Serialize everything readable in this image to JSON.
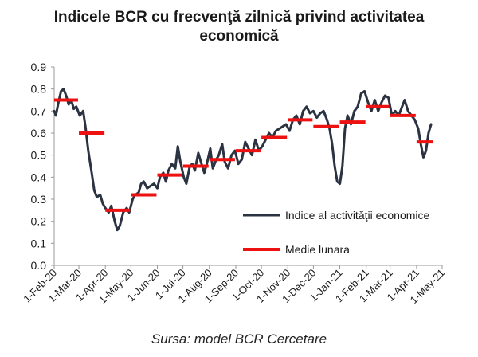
{
  "chart_data": {
    "type": "line",
    "title_line1": "Indicele BCR cu frecvenţă zilnică privind activitatea",
    "title_line2": "economică",
    "xlabel": "",
    "ylabel": "",
    "ylim": [
      0,
      0.9
    ],
    "yticks": [
      "0.0",
      "0.1",
      "0.2",
      "0.3",
      "0.4",
      "0.5",
      "0.6",
      "0.7",
      "0.8",
      "0.9"
    ],
    "xticks": [
      "1-Feb-20",
      "1-Mar-20",
      "1-Apr-20",
      "1-May-20",
      "1-Jun-20",
      "1-Jul-20",
      "1-Aug-20",
      "1-Sep-20",
      "1-Oct-20",
      "1-Nov-20",
      "1-Dec-20",
      "1-Jan-21",
      "1-Feb-21",
      "1-Mar-21",
      "1-Apr-21",
      "1-May-21"
    ],
    "grid": false,
    "legend_position": "right",
    "series": [
      {
        "name": "Indice al activităţii economice",
        "color": "#2b3342",
        "points": [
          [
            "2020-02-01",
            0.7
          ],
          [
            "2020-02-03",
            0.68
          ],
          [
            "2020-02-06",
            0.74
          ],
          [
            "2020-02-09",
            0.79
          ],
          [
            "2020-02-12",
            0.8
          ],
          [
            "2020-02-15",
            0.77
          ],
          [
            "2020-02-18",
            0.73
          ],
          [
            "2020-02-21",
            0.75
          ],
          [
            "2020-02-24",
            0.71
          ],
          [
            "2020-02-27",
            0.72
          ],
          [
            "2020-03-02",
            0.68
          ],
          [
            "2020-03-06",
            0.7
          ],
          [
            "2020-03-09",
            0.62
          ],
          [
            "2020-03-12",
            0.52
          ],
          [
            "2020-03-16",
            0.42
          ],
          [
            "2020-03-19",
            0.34
          ],
          [
            "2020-03-22",
            0.31
          ],
          [
            "2020-03-26",
            0.32
          ],
          [
            "2020-03-29",
            0.28
          ],
          [
            "2020-04-01",
            0.26
          ],
          [
            "2020-04-05",
            0.24
          ],
          [
            "2020-04-08",
            0.27
          ],
          [
            "2020-04-12",
            0.2
          ],
          [
            "2020-04-15",
            0.16
          ],
          [
            "2020-04-18",
            0.18
          ],
          [
            "2020-04-22",
            0.24
          ],
          [
            "2020-04-26",
            0.26
          ],
          [
            "2020-04-29",
            0.24
          ],
          [
            "2020-05-03",
            0.3
          ],
          [
            "2020-05-06",
            0.32
          ],
          [
            "2020-05-10",
            0.33
          ],
          [
            "2020-05-13",
            0.37
          ],
          [
            "2020-05-16",
            0.38
          ],
          [
            "2020-05-20",
            0.35
          ],
          [
            "2020-05-24",
            0.36
          ],
          [
            "2020-05-28",
            0.37
          ],
          [
            "2020-06-01",
            0.35
          ],
          [
            "2020-06-04",
            0.4
          ],
          [
            "2020-06-08",
            0.42
          ],
          [
            "2020-06-11",
            0.38
          ],
          [
            "2020-06-14",
            0.43
          ],
          [
            "2020-06-18",
            0.46
          ],
          [
            "2020-06-22",
            0.44
          ],
          [
            "2020-06-25",
            0.54
          ],
          [
            "2020-06-28",
            0.47
          ],
          [
            "2020-07-02",
            0.4
          ],
          [
            "2020-07-05",
            0.37
          ],
          [
            "2020-07-09",
            0.45
          ],
          [
            "2020-07-12",
            0.46
          ],
          [
            "2020-07-15",
            0.43
          ],
          [
            "2020-07-19",
            0.51
          ],
          [
            "2020-07-22",
            0.47
          ],
          [
            "2020-07-26",
            0.42
          ],
          [
            "2020-07-29",
            0.46
          ],
          [
            "2020-08-02",
            0.53
          ],
          [
            "2020-08-05",
            0.44
          ],
          [
            "2020-08-09",
            0.48
          ],
          [
            "2020-08-12",
            0.5
          ],
          [
            "2020-08-16",
            0.55
          ],
          [
            "2020-08-19",
            0.47
          ],
          [
            "2020-08-23",
            0.44
          ],
          [
            "2020-08-27",
            0.5
          ],
          [
            "2020-08-31",
            0.52
          ],
          [
            "2020-09-04",
            0.46
          ],
          [
            "2020-09-08",
            0.48
          ],
          [
            "2020-09-12",
            0.56
          ],
          [
            "2020-09-16",
            0.53
          ],
          [
            "2020-09-20",
            0.5
          ],
          [
            "2020-09-24",
            0.57
          ],
          [
            "2020-09-28",
            0.52
          ],
          [
            "2020-10-02",
            0.54
          ],
          [
            "2020-10-06",
            0.57
          ],
          [
            "2020-10-10",
            0.6
          ],
          [
            "2020-10-14",
            0.58
          ],
          [
            "2020-10-18",
            0.61
          ],
          [
            "2020-10-22",
            0.62
          ],
          [
            "2020-10-26",
            0.63
          ],
          [
            "2020-10-30",
            0.64
          ],
          [
            "2020-11-03",
            0.61
          ],
          [
            "2020-11-07",
            0.66
          ],
          [
            "2020-11-11",
            0.68
          ],
          [
            "2020-11-15",
            0.64
          ],
          [
            "2020-11-19",
            0.7
          ],
          [
            "2020-11-23",
            0.72
          ],
          [
            "2020-11-27",
            0.69
          ],
          [
            "2020-12-01",
            0.7
          ],
          [
            "2020-12-05",
            0.67
          ],
          [
            "2020-12-09",
            0.69
          ],
          [
            "2020-12-13",
            0.7
          ],
          [
            "2020-12-17",
            0.66
          ],
          [
            "2020-12-20",
            0.62
          ],
          [
            "2020-12-23",
            0.55
          ],
          [
            "2020-12-26",
            0.45
          ],
          [
            "2020-12-29",
            0.38
          ],
          [
            "2021-01-01",
            0.37
          ],
          [
            "2021-01-04",
            0.45
          ],
          [
            "2021-01-07",
            0.62
          ],
          [
            "2021-01-10",
            0.68
          ],
          [
            "2021-01-14",
            0.64
          ],
          [
            "2021-01-18",
            0.7
          ],
          [
            "2021-01-22",
            0.72
          ],
          [
            "2021-01-26",
            0.78
          ],
          [
            "2021-01-30",
            0.79
          ],
          [
            "2021-02-03",
            0.74
          ],
          [
            "2021-02-07",
            0.7
          ],
          [
            "2021-02-11",
            0.75
          ],
          [
            "2021-02-15",
            0.7
          ],
          [
            "2021-02-19",
            0.74
          ],
          [
            "2021-02-23",
            0.77
          ],
          [
            "2021-02-27",
            0.76
          ],
          [
            "2021-03-03",
            0.68
          ],
          [
            "2021-03-07",
            0.7
          ],
          [
            "2021-03-11",
            0.68
          ],
          [
            "2021-03-15",
            0.72
          ],
          [
            "2021-03-18",
            0.75
          ],
          [
            "2021-03-22",
            0.7
          ],
          [
            "2021-03-26",
            0.68
          ],
          [
            "2021-03-30",
            0.66
          ],
          [
            "2021-04-03",
            0.62
          ],
          [
            "2021-04-06",
            0.55
          ],
          [
            "2021-04-09",
            0.49
          ],
          [
            "2021-04-12",
            0.52
          ],
          [
            "2021-04-15",
            0.6
          ],
          [
            "2021-04-18",
            0.64
          ]
        ]
      },
      {
        "name": "Medie lunara",
        "color": "#ee1111",
        "segments": [
          [
            "2020-02-01",
            "2020-02-29",
            0.75
          ],
          [
            "2020-03-01",
            "2020-03-31",
            0.6
          ],
          [
            "2020-04-01",
            "2020-04-30",
            0.25
          ],
          [
            "2020-05-01",
            "2020-05-31",
            0.32
          ],
          [
            "2020-06-01",
            "2020-06-30",
            0.41
          ],
          [
            "2020-07-01",
            "2020-07-31",
            0.45
          ],
          [
            "2020-08-01",
            "2020-08-31",
            0.48
          ],
          [
            "2020-09-01",
            "2020-09-30",
            0.52
          ],
          [
            "2020-10-01",
            "2020-10-31",
            0.58
          ],
          [
            "2020-11-01",
            "2020-11-30",
            0.66
          ],
          [
            "2020-12-01",
            "2020-12-31",
            0.63
          ],
          [
            "2021-01-01",
            "2021-01-31",
            0.65
          ],
          [
            "2021-02-01",
            "2021-02-28",
            0.72
          ],
          [
            "2021-03-01",
            "2021-03-31",
            0.68
          ],
          [
            "2021-04-01",
            "2021-04-20",
            0.56
          ]
        ]
      }
    ],
    "source": "Sursa: model BCR Cercetare"
  }
}
